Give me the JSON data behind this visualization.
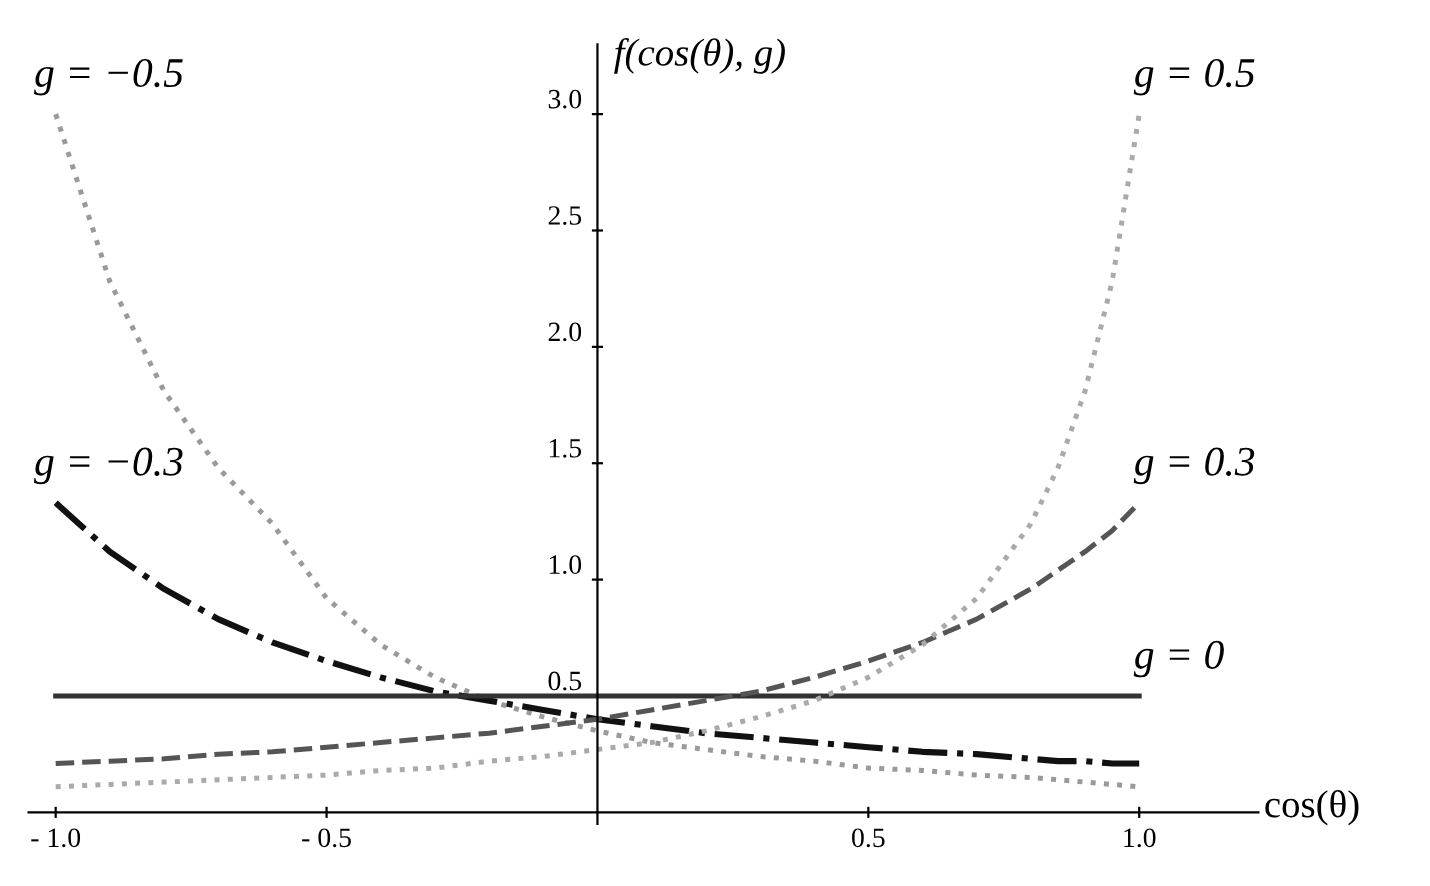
{
  "chart_data": {
    "type": "line",
    "xlabel": "cos(θ)",
    "ylabel": "f(cos(θ), g)",
    "x": [
      -1.0,
      -0.9,
      -0.8,
      -0.7,
      -0.6,
      -0.5,
      -0.4,
      -0.3,
      -0.2,
      -0.1,
      0.0,
      0.1,
      0.2,
      0.3,
      0.4,
      0.5,
      0.6,
      0.7,
      0.8,
      0.85,
      0.9,
      0.95,
      1.0
    ],
    "series": [
      {
        "name": "g = −0.5",
        "color": "#9a9a9a",
        "line_style": "dotted",
        "values": [
          3.0,
          2.28,
          1.81,
          1.48,
          1.24,
          0.92,
          0.72,
          0.58,
          0.48,
          0.41,
          0.35,
          0.3,
          0.27,
          0.24,
          0.22,
          0.19,
          0.18,
          0.16,
          0.15,
          0.14,
          0.13,
          0.12,
          0.11
        ]
      },
      {
        "name": "g = −0.3",
        "color": "#111111",
        "line_style": "dashdot",
        "values": [
          1.33,
          1.12,
          0.96,
          0.83,
          0.73,
          0.65,
          0.58,
          0.52,
          0.48,
          0.44,
          0.4,
          0.37,
          0.34,
          0.32,
          0.3,
          0.28,
          0.26,
          0.25,
          0.23,
          0.22,
          0.22,
          0.21,
          0.21
        ]
      },
      {
        "name": "g = 0",
        "color": "#333333",
        "line_style": "solid",
        "values": [
          0.5,
          0.5,
          0.5,
          0.5,
          0.5,
          0.5,
          0.5,
          0.5,
          0.5,
          0.5,
          0.5,
          0.5,
          0.5,
          0.5,
          0.5,
          0.5,
          0.5,
          0.5,
          0.5,
          0.5,
          0.5,
          0.5,
          0.5
        ]
      },
      {
        "name": "g = 0.3",
        "color": "#555555",
        "line_style": "dashed",
        "values": [
          0.21,
          0.22,
          0.23,
          0.25,
          0.26,
          0.28,
          0.3,
          0.32,
          0.34,
          0.37,
          0.4,
          0.44,
          0.48,
          0.52,
          0.58,
          0.65,
          0.73,
          0.83,
          0.96,
          1.04,
          1.12,
          1.21,
          1.33
        ]
      },
      {
        "name": "g = 0.5",
        "color": "#aaaaaa",
        "line_style": "dotted",
        "values": [
          0.11,
          0.12,
          0.13,
          0.14,
          0.15,
          0.16,
          0.18,
          0.19,
          0.22,
          0.24,
          0.27,
          0.3,
          0.35,
          0.41,
          0.48,
          0.58,
          0.72,
          0.92,
          1.24,
          1.48,
          1.81,
          2.28,
          3.0
        ]
      }
    ],
    "xlim": [
      -1.05,
      1.22
    ],
    "ylim": [
      -0.05,
      3.3
    ],
    "xticks": [
      {
        "value": -1.0,
        "label": "- 1.0"
      },
      {
        "value": -0.5,
        "label": "- 0.5"
      },
      {
        "value": 0.5,
        "label": "0.5"
      },
      {
        "value": 1.0,
        "label": "1.0"
      }
    ],
    "yticks": [
      {
        "value": 0.5,
        "label": "0.5"
      },
      {
        "value": 1.0,
        "label": "1.0"
      },
      {
        "value": 1.5,
        "label": "1.5"
      },
      {
        "value": 2.0,
        "label": "2.0"
      },
      {
        "value": 2.5,
        "label": "2.5"
      },
      {
        "value": 3.0,
        "label": "3.0"
      }
    ],
    "grid": false,
    "legend": false,
    "marker": "none"
  }
}
